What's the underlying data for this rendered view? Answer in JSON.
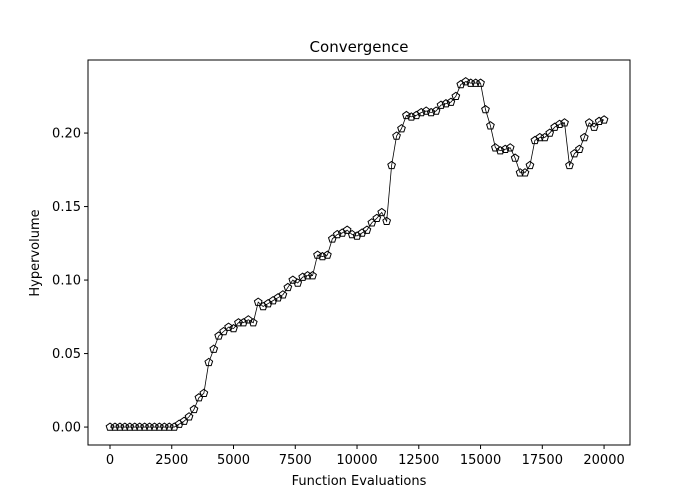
{
  "chart_data": {
    "type": "line",
    "title": "Convergence",
    "xlabel": "Function Evaluations",
    "ylabel": "Hypervolume",
    "x": [
      0,
      200,
      400,
      600,
      800,
      1000,
      1200,
      1400,
      1600,
      1800,
      2000,
      2200,
      2400,
      2600,
      2800,
      3000,
      3200,
      3400,
      3600,
      3800,
      4000,
      4200,
      4400,
      4600,
      4800,
      5000,
      5200,
      5400,
      5600,
      5800,
      6000,
      6200,
      6400,
      6600,
      6800,
      7000,
      7200,
      7400,
      7600,
      7800,
      8000,
      8200,
      8400,
      8600,
      8800,
      9000,
      9200,
      9400,
      9600,
      9800,
      10000,
      10200,
      10400,
      10600,
      10800,
      11000,
      11200,
      11400,
      11600,
      11800,
      12000,
      12200,
      12400,
      12600,
      12800,
      13000,
      13200,
      13400,
      13600,
      13800,
      14000,
      14200,
      14400,
      14600,
      14800,
      15000,
      15200,
      15400,
      15600,
      15800,
      16000,
      16200,
      16400,
      16600,
      16800,
      17000,
      17200,
      17400,
      17600,
      17800,
      18000,
      18200,
      18400,
      18600,
      18800,
      19000,
      19200,
      19400,
      19600,
      19800,
      20000
    ],
    "series": [
      {
        "name": "Hypervolume",
        "color": "#000000",
        "values": [
          0,
          0,
          0,
          0,
          0,
          0,
          0,
          0,
          0,
          0,
          0,
          0,
          0,
          0,
          0.002,
          0.004,
          0.007,
          0.012,
          0.02,
          0.023,
          0.044,
          0.053,
          0.062,
          0.065,
          0.068,
          0.067,
          0.071,
          0.071,
          0.073,
          0.071,
          0.085,
          0.082,
          0.084,
          0.086,
          0.088,
          0.09,
          0.095,
          0.1,
          0.098,
          0.102,
          0.103,
          0.103,
          0.117,
          0.116,
          0.117,
          0.128,
          0.131,
          0.132,
          0.134,
          0.131,
          0.13,
          0.132,
          0.134,
          0.139,
          0.142,
          0.146,
          0.14,
          0.178,
          0.198,
          0.203,
          0.212,
          0.211,
          0.212,
          0.214,
          0.215,
          0.214,
          0.215,
          0.219,
          0.22,
          0.221,
          0.225,
          0.233,
          0.235,
          0.234,
          0.234,
          0.234,
          0.216,
          0.205,
          0.19,
          0.188,
          0.189,
          0.19,
          0.183,
          0.173,
          0.173,
          0.178,
          0.195,
          0.197,
          0.197,
          0.2,
          0.204,
          0.206,
          0.207,
          0.178,
          0.186,
          0.189,
          0.197,
          0.207,
          0.204,
          0.208,
          0.209
        ]
      }
    ],
    "xlim": [
      -890,
      21050
    ],
    "xticks": [
      0,
      2500,
      5000,
      7500,
      10000,
      12500,
      15000,
      17500,
      20000
    ],
    "ylim": [
      -0.0122,
      0.2497
    ],
    "yticks": [
      {
        "value": 0,
        "label": "0.00"
      },
      {
        "value": 0.05,
        "label": "0.05"
      },
      {
        "value": 0.1,
        "label": "0.10"
      },
      {
        "value": 0.15,
        "label": "0.15"
      },
      {
        "value": 0.2,
        "label": "0.20"
      }
    ]
  }
}
